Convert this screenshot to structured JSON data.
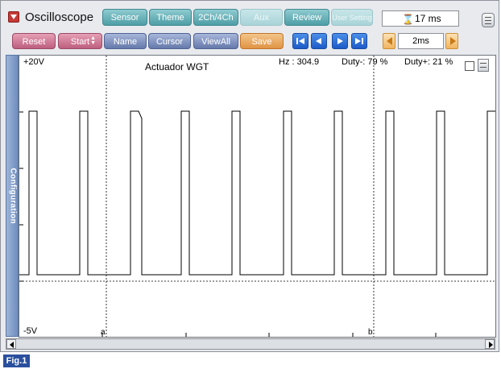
{
  "app": {
    "title": "Oscilloscope"
  },
  "tabs": [
    {
      "label": "Sensor",
      "enabled": true
    },
    {
      "label": "Theme",
      "enabled": true
    },
    {
      "label": "2Ch/4Ch",
      "enabled": true
    },
    {
      "label": "Aux",
      "enabled": false
    },
    {
      "label": "Review",
      "enabled": true
    },
    {
      "label": "User Setting",
      "enabled": false
    }
  ],
  "timer": {
    "icon": "hourglass-icon",
    "value": "17 ms"
  },
  "toolbar": {
    "reset": "Reset",
    "start": "Start",
    "name": "Name",
    "cursor": "Cursor",
    "viewall": "ViewAll",
    "save": "Save"
  },
  "playback": [
    "skip-to-start-icon",
    "step-back-icon",
    "step-forward-icon",
    "skip-to-end-icon"
  ],
  "timebase": {
    "value": "2ms"
  },
  "sidebar": {
    "label": "Configuration"
  },
  "scope": {
    "y_top": "+20V",
    "y_bottom": "-5V",
    "channel": "Actuador WGT",
    "hz": "Hz  : 304.9",
    "duty_minus": "Duty-: 79 %",
    "duty_plus": "Duty+: 21 %",
    "cursor_a": "a",
    "cursor_b": "b"
  },
  "figure": {
    "label": "Fig.1"
  },
  "colors": {
    "tab": "#5ba8b0",
    "pink": "#c56d8b",
    "blue": "#6f83b3",
    "orange": "#e9a050",
    "nav": "#2a6bd6",
    "fig": "#2a4f9e"
  }
}
